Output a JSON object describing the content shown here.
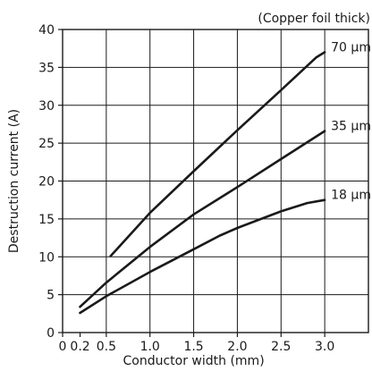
{
  "chart_data": {
    "type": "line",
    "corner_note": "(Copper foil thick)",
    "xlabel": "Conductor width (mm)",
    "ylabel": "Destruction current (A)",
    "xlim": [
      0,
      3.5
    ],
    "ylim": [
      0,
      40
    ],
    "x_ticks": [
      0,
      0.2,
      0.5,
      1.0,
      1.5,
      2.0,
      2.5,
      3.0
    ],
    "x_tick_labels": [
      "0",
      "0.2",
      "0.5",
      "1.0",
      "1.5",
      "2.0",
      "2.5",
      "3.0"
    ],
    "x_grid": [
      0.5,
      1.0,
      1.5,
      2.0,
      2.5,
      3.0
    ],
    "y_ticks": [
      0,
      5,
      10,
      15,
      20,
      25,
      30,
      35,
      40
    ],
    "y_tick_labels": [
      "0",
      "5",
      "10",
      "15",
      "20",
      "25",
      "30",
      "35",
      "40"
    ],
    "grid": true,
    "series": [
      {
        "name": "70 μm",
        "points": [
          [
            0.55,
            10.1
          ],
          [
            1.0,
            15.8
          ],
          [
            1.5,
            21.3
          ],
          [
            2.0,
            26.7
          ],
          [
            2.5,
            32.0
          ],
          [
            2.9,
            36.3
          ],
          [
            3.0,
            37.0
          ]
        ]
      },
      {
        "name": "35 μm",
        "points": [
          [
            0.2,
            3.4
          ],
          [
            0.5,
            6.6
          ],
          [
            1.0,
            11.3
          ],
          [
            1.5,
            15.6
          ],
          [
            2.0,
            19.2
          ],
          [
            2.5,
            22.9
          ],
          [
            3.0,
            26.6
          ]
        ]
      },
      {
        "name": "18 μm",
        "points": [
          [
            0.2,
            2.6
          ],
          [
            0.5,
            4.8
          ],
          [
            1.0,
            8.0
          ],
          [
            1.5,
            11.0
          ],
          [
            1.8,
            12.8
          ],
          [
            2.0,
            13.8
          ],
          [
            2.5,
            16.0
          ],
          [
            2.8,
            17.1
          ],
          [
            3.0,
            17.5
          ]
        ]
      }
    ]
  }
}
